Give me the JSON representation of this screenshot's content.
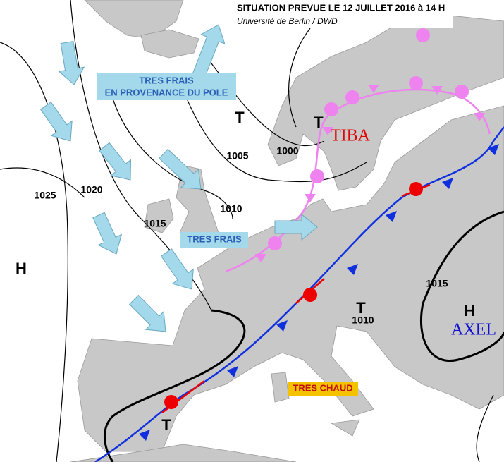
{
  "header": {
    "title": "SITUATION PREVUE LE 12 JUILLET 2016 à 14 H",
    "subtitle": "Université de Berlin / DWD"
  },
  "annotations": [
    {
      "lines": [
        "TRES FRAIS",
        "EN PROVENANCE DU POLE"
      ]
    },
    {
      "lines": [
        "TRES FRAIS"
      ]
    },
    {
      "lines": [
        "TRES CHAUD"
      ]
    }
  ],
  "isobars": [
    {
      "label": "1025"
    },
    {
      "label": "1020"
    },
    {
      "label": "1015"
    },
    {
      "label": "1010"
    },
    {
      "label": "1005"
    },
    {
      "label": "1000"
    },
    {
      "label": "1015"
    },
    {
      "label": "1010"
    }
  ],
  "centers": [
    {
      "label": "H"
    },
    {
      "label": "T"
    },
    {
      "label": "T"
    },
    {
      "label": "T"
    },
    {
      "label": "T"
    },
    {
      "label": "H"
    }
  ],
  "names": [
    {
      "label": "TIBA"
    },
    {
      "label": "AXEL"
    }
  ]
}
